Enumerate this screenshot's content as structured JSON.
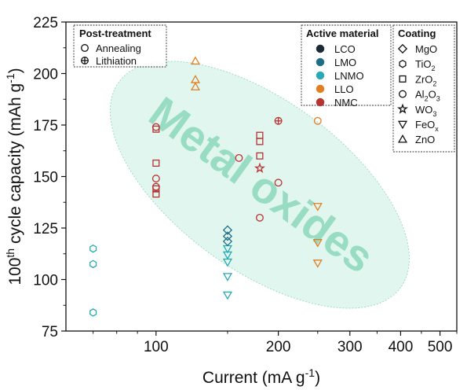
{
  "chart_data": {
    "type": "scatter",
    "x_scale": "log",
    "xlim": [
      60,
      550
    ],
    "ylim": [
      75,
      225
    ],
    "xlabel_main": "Current (mA g",
    "xlabel_sup": "-1",
    "xlabel_end": ")",
    "ylabel_pre": "100",
    "ylabel_sup": "th",
    "ylabel_mid": " cycle capacity (mAh g",
    "ylabel_sup2": "-1",
    "ylabel_end": ")",
    "x_ticks": [
      {
        "value": 100,
        "label": "100"
      },
      {
        "value": 200,
        "label": "200"
      },
      {
        "value": 300,
        "label": "300"
      },
      {
        "value": 400,
        "label": "400"
      },
      {
        "value": 500,
        "label": "500"
      }
    ],
    "x_minor_ticks": [
      70,
      80,
      90,
      150,
      250,
      350,
      450,
      550
    ],
    "y_ticks": [
      75,
      100,
      125,
      150,
      175,
      200,
      225
    ],
    "y_minor_ticks": [
      87.5,
      112.5,
      137.5,
      162.5,
      187.5,
      212.5
    ],
    "grid": false,
    "annotation": {
      "text": "Metal oxides",
      "color": "#7fd3b4"
    },
    "ellipse_region": {
      "x_center": 180,
      "y_center": 146,
      "color": "#c8efe0"
    },
    "legends": {
      "post_treatment": {
        "title": "Post-treatment",
        "placement": "top-left",
        "items": [
          {
            "marker": "circle",
            "label": "Annealing"
          },
          {
            "marker": "circle-plus",
            "label": "Lithiation"
          }
        ]
      },
      "active_material": {
        "title": "Active material",
        "placement": "top-right",
        "items": [
          {
            "label": "LCO",
            "color": "#1b2a36"
          },
          {
            "label": "LMO",
            "color": "#1e6f86"
          },
          {
            "label": "LNMO",
            "color": "#27aab5"
          },
          {
            "label": "LLO",
            "color": "#e07e22"
          },
          {
            "label": "NMC",
            "color": "#b83232"
          }
        ]
      },
      "coating": {
        "title": "Coating",
        "placement": "right",
        "items": [
          {
            "marker": "diamond",
            "label": "MgO",
            "label_base": "MgO",
            "label_sub": ""
          },
          {
            "marker": "hexagon",
            "label": "TiO2",
            "label_base": "TiO",
            "label_sub": "2"
          },
          {
            "marker": "square",
            "label": "ZrO2",
            "label_base": "ZrO",
            "label_sub": "2"
          },
          {
            "marker": "circle",
            "label": "Al2O3",
            "label_base": "Al",
            "label_sub": "2",
            "label_base2": "O",
            "label_sub2": "3"
          },
          {
            "marker": "star",
            "label": "WO3",
            "label_base": "WO",
            "label_sub": "3"
          },
          {
            "marker": "triangle-down",
            "label": "FeOx",
            "label_base": "FeO",
            "label_sub": "x"
          },
          {
            "marker": "triangle-up",
            "label": "ZnO",
            "label_base": "ZnO",
            "label_sub": ""
          }
        ]
      }
    },
    "series": [
      {
        "material": "LNMO",
        "coating": "TiO2",
        "points": [
          [
            70,
            115
          ],
          [
            70,
            107.5
          ],
          [
            70,
            84
          ]
        ]
      },
      {
        "material": "LNMO",
        "coating": "FeOx",
        "points": [
          [
            150,
            115
          ],
          [
            150,
            112
          ],
          [
            150,
            108.5
          ],
          [
            150,
            101.5
          ],
          [
            150,
            92.5
          ]
        ]
      },
      {
        "material": "LMO",
        "coating": "MgO",
        "points": [
          [
            150,
            124
          ],
          [
            150,
            121
          ],
          [
            150,
            118.5
          ]
        ]
      },
      {
        "material": "NMC",
        "coating": "Al2O3",
        "points": [
          [
            100,
            174
          ],
          [
            100,
            149
          ],
          [
            100,
            145
          ],
          [
            160,
            159
          ],
          [
            180,
            130
          ],
          [
            200,
            147
          ]
        ]
      },
      {
        "material": "NMC",
        "coating": "ZrO2",
        "points": [
          [
            100,
            173
          ],
          [
            100,
            156.5
          ],
          [
            100,
            144
          ],
          [
            100,
            141.5
          ],
          [
            180,
            170
          ],
          [
            180,
            167
          ],
          [
            180,
            160
          ]
        ]
      },
      {
        "material": "NMC",
        "coating": "WO3",
        "points": [
          [
            180,
            154
          ]
        ]
      },
      {
        "material": "NMC",
        "coating": "Al2O3",
        "treatment": "Lithiation",
        "points": [
          [
            200,
            177
          ]
        ]
      },
      {
        "material": "LLO",
        "coating": "ZnO",
        "points": [
          [
            125,
            206
          ],
          [
            125,
            197
          ],
          [
            125,
            193.5
          ]
        ]
      },
      {
        "material": "LLO",
        "coating": "Al2O3",
        "points": [
          [
            250,
            177
          ]
        ]
      },
      {
        "material": "LLO",
        "coating": "FeOx",
        "points": [
          [
            250,
            135.5
          ],
          [
            250,
            118
          ],
          [
            250,
            108
          ]
        ]
      }
    ]
  }
}
